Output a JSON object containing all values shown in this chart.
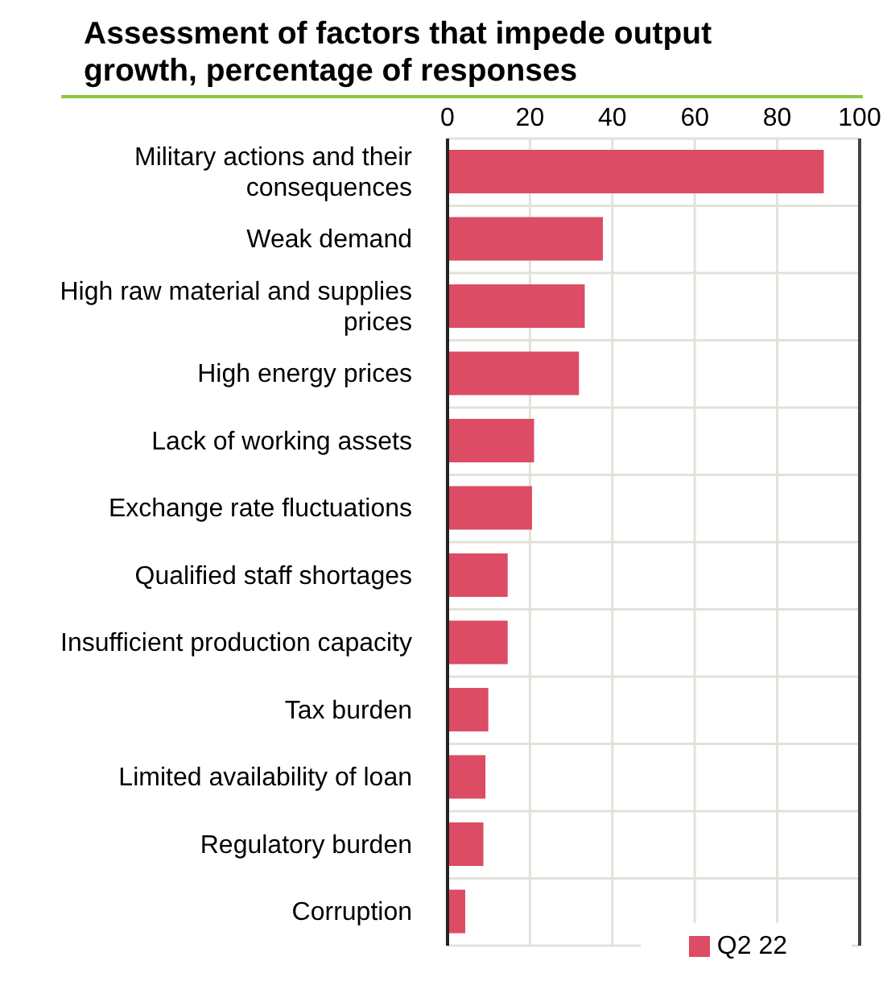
{
  "chart_data": {
    "type": "bar",
    "orientation": "horizontal",
    "title": "Assessment of factors that impede output growth, percentage of responses",
    "categories": [
      "Military actions and their consequences",
      "Weak demand",
      "High raw material and supplies prices",
      "High energy prices",
      "Lack of working assets",
      "Exchange rate fluctuations",
      "Qualified staff shortages",
      "Insufficient production capacity",
      "Tax burden",
      "Limited availability of loan",
      "Regulatory burden",
      "Corruption"
    ],
    "series": [
      {
        "name": "Q2 22",
        "color": "#dc4c64",
        "values": [
          91.3,
          37.7,
          33.3,
          31.9,
          21,
          20.5,
          14.6,
          14.6,
          9.9,
          9.2,
          8.7,
          4.3
        ]
      }
    ],
    "xlim": [
      0,
      100
    ],
    "xticks": [
      0,
      20,
      40,
      60,
      80,
      100
    ],
    "grid": true,
    "legend": "bottom right"
  }
}
